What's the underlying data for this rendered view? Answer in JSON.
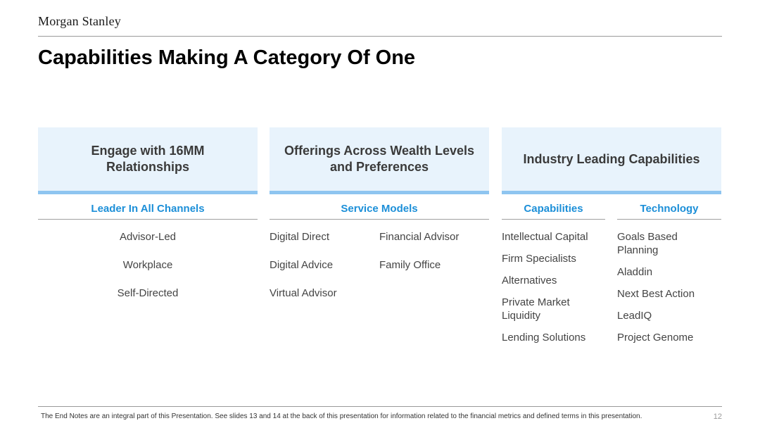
{
  "brand": "Morgan Stanley",
  "title": "Capabilities Making A Category Of One",
  "columns": [
    {
      "header_line1": "Engage with 16MM",
      "header_line2": "Relationships",
      "subheader": "Leader In All Channels",
      "items": [
        "Advisor-Led",
        "Workplace",
        "Self-Directed"
      ]
    },
    {
      "header_line1": "Offerings Across Wealth Levels",
      "header_line2": "and Preferences",
      "subheader": "Service Models",
      "left_items": [
        "Digital Direct",
        "Digital Advice",
        "Virtual Advisor"
      ],
      "right_items": [
        "Financial Advisor",
        "Family Office"
      ]
    },
    {
      "header": "Industry Leading Capabilities",
      "sub_left": "Capabilities",
      "sub_right": "Technology",
      "capabilities": [
        "Intellectual Capital",
        "Firm Specialists",
        "Alternatives",
        "Private Market Liquidity",
        "Lending Solutions"
      ],
      "technology": [
        "Goals Based Planning",
        "Aladdin",
        "Next Best Action",
        "LeadIQ",
        "Project Genome"
      ]
    }
  ],
  "footnote": "The End Notes are an integral part of this Presentation. See slides 13 and 14 at the back of this presentation for information related to the financial metrics and defined terms in this presentation.",
  "page_number": "12"
}
